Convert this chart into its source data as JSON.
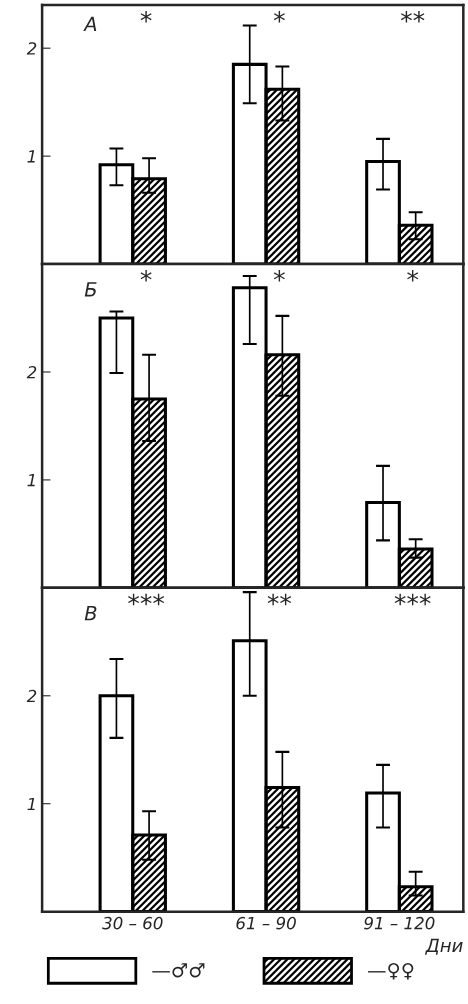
{
  "chart_data": [
    {
      "type": "bar",
      "title": "А",
      "categories": [
        null,
        null,
        null
      ],
      "ylim": [
        0,
        2.4
      ],
      "yticks": [
        1,
        2
      ],
      "tick_labels": "y",
      "series": [
        {
          "color": "#ffffff",
          "values": [
            0.92,
            1.85,
            0.95
          ],
          "errors": [
            [
              0.73,
              1.07
            ],
            [
              1.49,
              2.21
            ],
            [
              0.69,
              1.16
            ]
          ]
        },
        {
          "color": "#000000",
          "values": [
            0.79,
            1.62,
            0.36
          ],
          "errors": [
            [
              0.66,
              0.98
            ],
            [
              1.33,
              1.83
            ],
            [
              0.23,
              0.48
            ]
          ]
        }
      ],
      "annotations": [
        "*",
        "*",
        "**"
      ]
    },
    {
      "type": "bar",
      "title": "Б",
      "categories": [
        null,
        null,
        null
      ],
      "ylim": [
        0,
        3.0
      ],
      "yticks": [
        1,
        2
      ],
      "tick_labels": "y",
      "series": [
        {
          "color": "#ffffff",
          "values": [
            2.5,
            2.78,
            0.79
          ],
          "errors": [
            [
              1.99,
              2.56
            ],
            [
              2.26,
              2.89
            ],
            [
              0.44,
              1.13
            ]
          ]
        },
        {
          "color": "#000000",
          "values": [
            1.75,
            2.16,
            0.36
          ],
          "errors": [
            [
              1.36,
              2.16
            ],
            [
              1.78,
              2.52
            ],
            [
              0.28,
              0.45
            ]
          ]
        }
      ],
      "annotations": [
        "*",
        "*",
        "*"
      ]
    },
    {
      "type": "bar",
      "title": "В",
      "categories": [
        "30 – 60",
        "61 – 90",
        "91 – 120"
      ],
      "ylim": [
        0,
        3.0
      ],
      "yticks": [
        1,
        2
      ],
      "xlabel": "Дни",
      "legend": "bottom",
      "series": [
        {
          "name": "—♂♂",
          "color": "#ffffff",
          "values": [
            2.0,
            2.51,
            1.1
          ],
          "errors": [
            [
              1.61,
              2.34
            ],
            [
              2.0,
              2.96
            ],
            [
              0.78,
              1.36
            ]
          ]
        },
        {
          "name": "—♀♀",
          "color": "#000000",
          "values": [
            0.71,
            1.15,
            0.23
          ],
          "errors": [
            [
              0.48,
              0.93
            ],
            [
              0.78,
              1.48
            ],
            [
              0.15,
              0.37
            ]
          ]
        }
      ],
      "annotations": [
        "***",
        "**",
        "***"
      ]
    }
  ]
}
